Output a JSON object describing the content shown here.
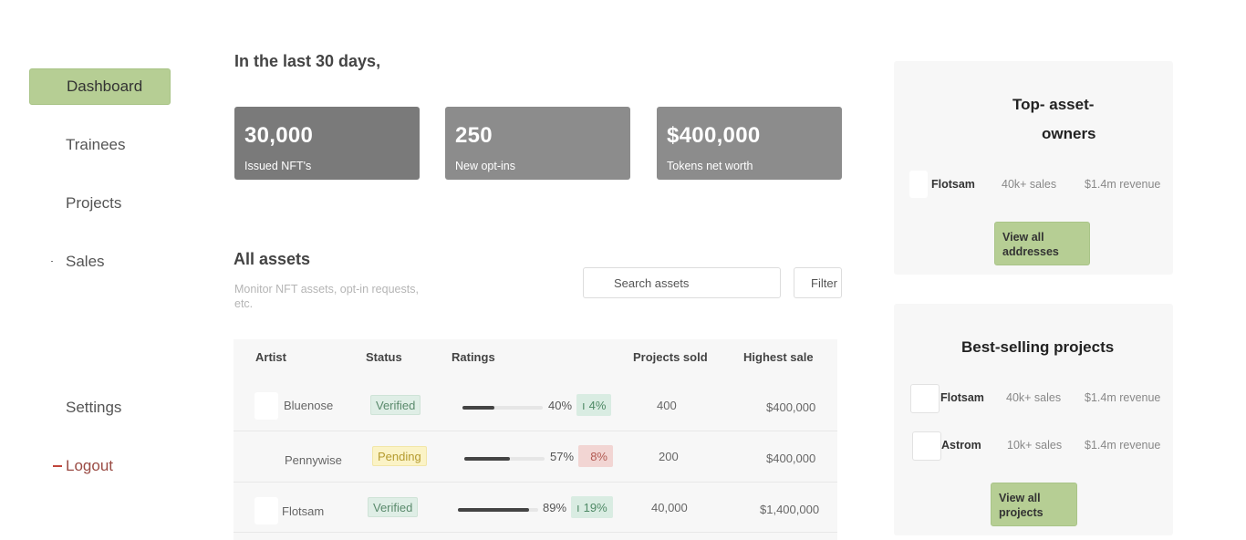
{
  "sidebar": {
    "items": [
      {
        "label": "Dashboard"
      },
      {
        "label": "Trainees"
      },
      {
        "label": "Projects"
      },
      {
        "label": "Sales"
      }
    ],
    "settings_label": "Settings",
    "logout_label": "Logout"
  },
  "summary": {
    "heading": "In the last 30 days,",
    "stats": [
      {
        "value": "30,000",
        "label": "Issued NFT's"
      },
      {
        "value": "250",
        "label": "New opt-ins"
      },
      {
        "value": "$400,000",
        "label": "Tokens net worth"
      }
    ]
  },
  "assets": {
    "title": "All assets",
    "subtitle": "Monitor NFT assets, opt-in requests, etc.",
    "search_placeholder": "Search assets",
    "filter_label": "Filter",
    "columns": [
      "Artist",
      "Status",
      "Ratings",
      "Projects sold",
      "Highest sale"
    ],
    "rows": [
      {
        "artist": "Bluenose",
        "status": "Verified",
        "rating": "40%",
        "rating_fraction": 0.4,
        "change": "4%",
        "sold": "400",
        "highest": "$400,000"
      },
      {
        "artist": "Pennywise",
        "status": "Pending",
        "rating": "57%",
        "rating_fraction": 0.57,
        "change": "8%",
        "sold": "200",
        "highest": "$400,000"
      },
      {
        "artist": "Flotsam",
        "status": "Verified",
        "rating": "89%",
        "rating_fraction": 0.89,
        "change": "19%",
        "sold": "40,000",
        "highest": "$1,400,000"
      }
    ]
  },
  "top_owners": {
    "title_line1": "Top- asset-",
    "title_line2": "owners",
    "items": [
      {
        "name": "Flotsam",
        "sales": "40k+ sales",
        "revenue": "$1.4m revenue"
      }
    ],
    "button_line1": "View all",
    "button_line2": "addresses"
  },
  "best_selling": {
    "title": "Best-selling projects",
    "items": [
      {
        "name": "Flotsam",
        "sales": "40k+ sales",
        "revenue": "$1.4m revenue"
      },
      {
        "name": "Astrom",
        "sales": "10k+ sales",
        "revenue": "$1.4m revenue"
      }
    ],
    "button_line1": "View all",
    "button_line2": "projects"
  },
  "colors": {
    "accent": "#b6ce94",
    "logout": "#c0453b",
    "verified_bg": "#dfeee6",
    "pending_bg": "#fbf3c6",
    "negative_bg": "#f2d5d3"
  }
}
